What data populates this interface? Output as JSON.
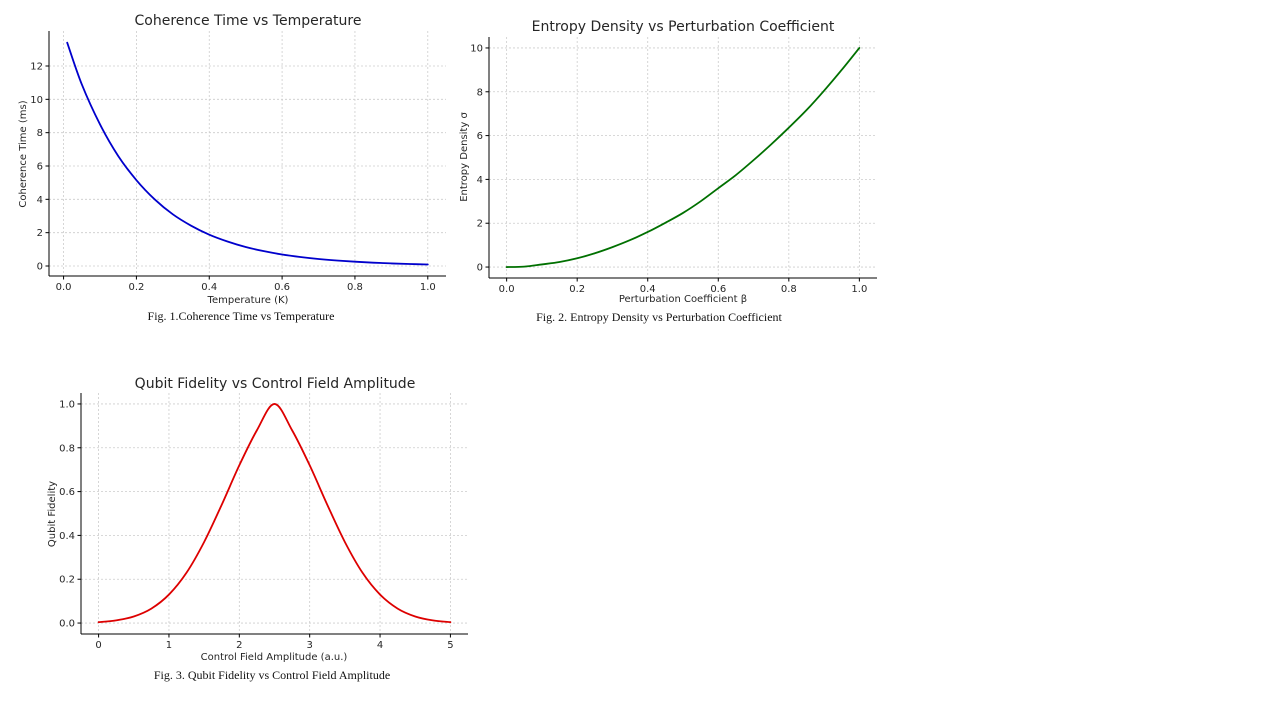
{
  "chart_data": [
    {
      "id": "fig1",
      "type": "line",
      "title": "Coherence Time vs Temperature",
      "xlabel": "Temperature (K)",
      "ylabel": "Coherence Time (ms)",
      "xlim": [
        -0.04,
        1.05
      ],
      "ylim": [
        -0.6,
        14.1
      ],
      "xticks": [
        0.0,
        0.2,
        0.4,
        0.6,
        0.8,
        1.0
      ],
      "xtick_labels": [
        "0.0",
        "0.2",
        "0.4",
        "0.6",
        "0.8",
        "1.0"
      ],
      "yticks": [
        0,
        2,
        4,
        6,
        8,
        10,
        12
      ],
      "ytick_labels": [
        "0",
        "2",
        "4",
        "6",
        "8",
        "10",
        "12"
      ],
      "grid": true,
      "caption": "Fig. 1.Coherence Time vs Temperature",
      "series": [
        {
          "color": "#0000cc",
          "x": [
            0.01,
            0.05,
            0.1,
            0.15,
            0.2,
            0.25,
            0.3,
            0.35,
            0.4,
            0.45,
            0.5,
            0.55,
            0.6,
            0.65,
            0.7,
            0.75,
            0.8,
            0.85,
            0.9,
            0.95,
            1.0
          ],
          "y": [
            13.4,
            10.9,
            8.5,
            6.6,
            5.15,
            4.0,
            3.1,
            2.42,
            1.88,
            1.47,
            1.14,
            0.89,
            0.69,
            0.54,
            0.42,
            0.33,
            0.26,
            0.2,
            0.155,
            0.12,
            0.09
          ]
        }
      ]
    },
    {
      "id": "fig2",
      "type": "line",
      "title": "Entropy Density vs Perturbation Coefficient",
      "xlabel": "Perturbation Coefficient β",
      "ylabel": "Entropy Density σ",
      "xlim": [
        -0.05,
        1.05
      ],
      "ylim": [
        -0.5,
        10.5
      ],
      "xticks": [
        0.0,
        0.2,
        0.4,
        0.6,
        0.8,
        1.0
      ],
      "xtick_labels": [
        "0.0",
        "0.2",
        "0.4",
        "0.6",
        "0.8",
        "1.0"
      ],
      "yticks": [
        0,
        2,
        4,
        6,
        8,
        10
      ],
      "ytick_labels": [
        "0",
        "2",
        "4",
        "6",
        "8",
        "10"
      ],
      "grid": true,
      "caption": "Fig. 2. Entropy Density vs Perturbation Coefficient",
      "series": [
        {
          "color": "#007000",
          "x": [
            0.0,
            0.05,
            0.1,
            0.15,
            0.2,
            0.25,
            0.3,
            0.35,
            0.4,
            0.45,
            0.5,
            0.55,
            0.6,
            0.65,
            0.7,
            0.75,
            0.8,
            0.85,
            0.9,
            0.95,
            1.0
          ],
          "y": [
            0.0,
            0.02,
            0.12,
            0.23,
            0.4,
            0.63,
            0.91,
            1.23,
            1.6,
            2.02,
            2.47,
            3.0,
            3.6,
            4.2,
            4.88,
            5.6,
            6.36,
            7.16,
            8.05,
            9.0,
            10.0
          ]
        }
      ]
    },
    {
      "id": "fig3",
      "type": "line",
      "title": "Qubit Fidelity vs Control Field Amplitude",
      "xlabel": "Control Field Amplitude (a.u.)",
      "ylabel": "Qubit Fidelity",
      "xlim": [
        -0.25,
        5.25
      ],
      "ylim": [
        -0.05,
        1.05
      ],
      "xticks": [
        0,
        1,
        2,
        3,
        4,
        5
      ],
      "xtick_labels": [
        "0",
        "1",
        "2",
        "3",
        "4",
        "5"
      ],
      "yticks": [
        0.0,
        0.2,
        0.4,
        0.6,
        0.8,
        1.0
      ],
      "ytick_labels": [
        "0.0",
        "0.2",
        "0.4",
        "0.6",
        "0.8",
        "1.0"
      ],
      "grid": true,
      "caption": "Fig. 3.  Qubit Fidelity vs Control Field Amplitude",
      "series": [
        {
          "color": "#dd0000",
          "x": [
            0.0,
            0.25,
            0.5,
            0.75,
            1.0,
            1.25,
            1.5,
            1.75,
            2.0,
            2.25,
            2.5,
            2.75,
            3.0,
            3.25,
            3.5,
            3.75,
            4.0,
            4.25,
            4.5,
            4.75,
            5.0
          ],
          "y": [
            0.004,
            0.012,
            0.03,
            0.066,
            0.13,
            0.23,
            0.37,
            0.54,
            0.72,
            0.88,
            1.0,
            0.88,
            0.72,
            0.54,
            0.37,
            0.23,
            0.13,
            0.066,
            0.03,
            0.012,
            0.004
          ]
        }
      ]
    }
  ]
}
